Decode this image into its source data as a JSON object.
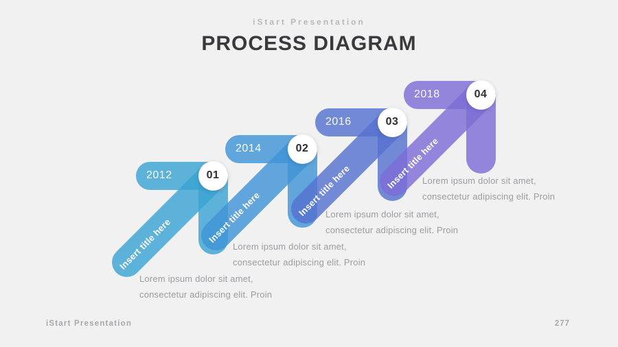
{
  "header": {
    "brand": "iStart Presentation",
    "title": "PROCESS DIAGRAM"
  },
  "steps": [
    {
      "year": "2012",
      "number": "01",
      "title": "Insert title here",
      "description_line1": "Lorem ipsum dolor sit amet,",
      "description_line2": "consectetur adipiscing elit. Proin",
      "color": "#3AA4D2"
    },
    {
      "year": "2014",
      "number": "02",
      "title": "Insert title here",
      "description_line1": "Lorem ipsum dolor sit amet,",
      "description_line2": "consectetur adipiscing elit. Proin",
      "color": "#4094D5"
    },
    {
      "year": "2016",
      "number": "03",
      "title": "Insert title here",
      "description_line1": "Lorem ipsum dolor sit amet,",
      "description_line2": "consectetur adipiscing elit. Proin",
      "color": "#5672D0"
    },
    {
      "year": "2018",
      "number": "04",
      "title": "Insert title here",
      "description_line1": "Lorem ipsum dolor sit amet,",
      "description_line2": "consectetur adipiscing elit. Proin",
      "color": "#7C6DD5"
    }
  ],
  "footer": {
    "brand": "iStart Presentation",
    "page_number": "277"
  },
  "background_color": "#F1F1F1"
}
